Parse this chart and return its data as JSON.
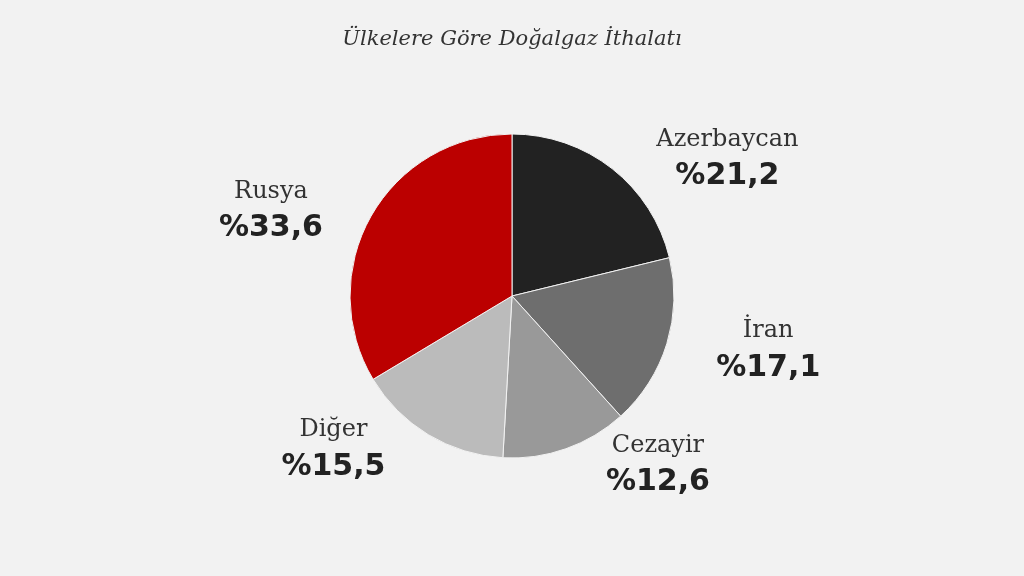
{
  "chart_data": {
    "type": "pie",
    "title": "Ülkelere Göre Doğalgaz İthalatı",
    "categories": [
      "Azerbaycan",
      "İran",
      "Cezayir",
      "Diğer",
      "Rusya"
    ],
    "values": [
      21.2,
      17.1,
      12.6,
      15.5,
      33.6
    ],
    "colors": [
      "#222222",
      "#6e6e6e",
      "#999999",
      "#bbbbbb",
      "#bb0000"
    ],
    "value_labels": [
      "%21,2",
      "%17,1",
      "%12,6",
      "%15,5",
      "%33,6"
    ],
    "legend": false
  }
}
